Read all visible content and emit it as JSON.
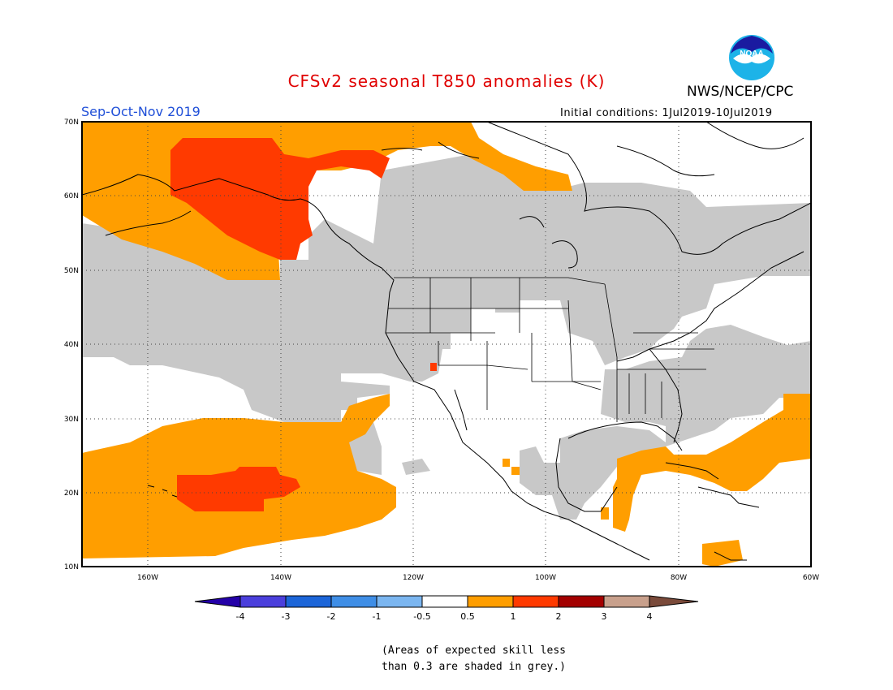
{
  "title": "CFSv2 seasonal T850 anomalies (K)",
  "season": "Sep-Oct-Nov 2019",
  "agency": "NWS/NCEP/CPC",
  "initial_conditions": "Initial conditions: 1Jul2019-10Jul2019",
  "logo_text": "NOAA",
  "map": {
    "lat_labels": [
      "70N",
      "60N",
      "50N",
      "40N",
      "30N",
      "20N",
      "10N"
    ],
    "lon_labels": [
      "160W",
      "140W",
      "120W",
      "100W",
      "80W",
      "60W"
    ],
    "lat_range": [
      10,
      70
    ],
    "lon_range": [
      -170,
      -60
    ],
    "grid": true
  },
  "colorbar": {
    "tick_labels": [
      "-4",
      "-3",
      "-2",
      "-1",
      "-0.5",
      "0.5",
      "1",
      "2",
      "3",
      "4"
    ],
    "colors": [
      "#2400a8",
      "#4b3fdc",
      "#1c65d8",
      "#3f8ee6",
      "#7bb6f0",
      "#ffffff",
      "#ff9e00",
      "#ff3a00",
      "#a30000",
      "#c8a08c",
      "#7a4a3a"
    ],
    "grey_color": "#c8c8c8",
    "orange_color": "#ff9e00",
    "red_color": "#ff3a00"
  },
  "note_line1": "(Areas of expected skill less",
  "note_line2": "than 0.3 are shaded in grey.)"
}
